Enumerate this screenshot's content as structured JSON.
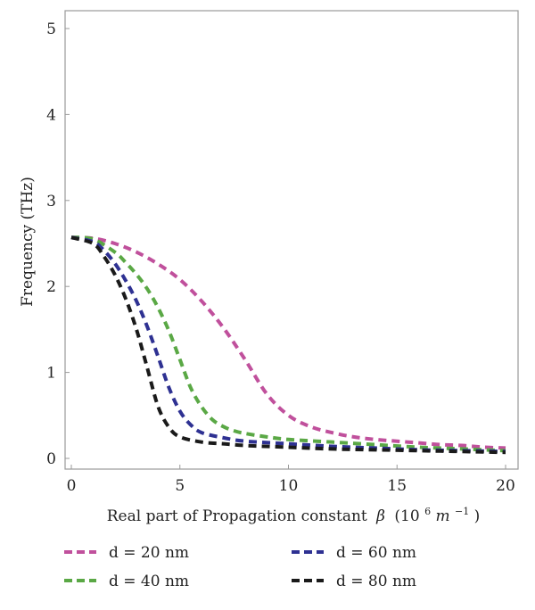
{
  "chart_data": {
    "type": "line",
    "title": "",
    "xlabel": "Real part of Propagation constant",
    "xlabel_symbol": "β",
    "xlabel_units": "(10",
    "xlabel_units_exp": "6",
    "xlabel_units_m": " m",
    "xlabel_units_mexp": "−1",
    "xlabel_units_close": ")",
    "ylabel": "Frequency (THz)",
    "xlim": [
      0,
      20
    ],
    "ylim": [
      0,
      5
    ],
    "xticks": [
      "0",
      "5",
      "10",
      "15",
      "20"
    ],
    "yticks": [
      "0",
      "1",
      "2",
      "3",
      "4",
      "5"
    ],
    "grid": false,
    "legend_position": "below",
    "line_style": "dashed",
    "series": [
      {
        "name": "d = 20 nm",
        "color": "#c0509c",
        "x": [
          0,
          1,
          2,
          3,
          4,
          5,
          6,
          7,
          8,
          9,
          10,
          11,
          12,
          13,
          14,
          15,
          16,
          17,
          18,
          19,
          20
        ],
        "y": [
          2.57,
          2.56,
          2.5,
          2.4,
          2.26,
          2.08,
          1.83,
          1.52,
          1.15,
          0.75,
          0.5,
          0.37,
          0.3,
          0.25,
          0.22,
          0.2,
          0.18,
          0.16,
          0.15,
          0.13,
          0.12
        ]
      },
      {
        "name": "d = 40 nm",
        "color": "#5aa845",
        "x": [
          0,
          1,
          2,
          2.5,
          3,
          3.5,
          4,
          4.5,
          5,
          5.5,
          6,
          6.5,
          7,
          7.5,
          8,
          9,
          10,
          12,
          14,
          16,
          18,
          20
        ],
        "y": [
          2.57,
          2.55,
          2.4,
          2.28,
          2.14,
          1.97,
          1.75,
          1.48,
          1.15,
          0.82,
          0.6,
          0.45,
          0.37,
          0.32,
          0.29,
          0.25,
          0.22,
          0.19,
          0.16,
          0.13,
          0.11,
          0.09
        ]
      },
      {
        "name": "d = 60 nm",
        "color": "#2e3192",
        "x": [
          0,
          1,
          1.5,
          2,
          2.5,
          3,
          3.5,
          4,
          4.5,
          5,
          5.5,
          6,
          7,
          8,
          10,
          12,
          14,
          16,
          18,
          20
        ],
        "y": [
          2.57,
          2.52,
          2.42,
          2.27,
          2.07,
          1.83,
          1.53,
          1.18,
          0.82,
          0.55,
          0.39,
          0.3,
          0.24,
          0.2,
          0.17,
          0.14,
          0.12,
          0.1,
          0.09,
          0.08
        ]
      },
      {
        "name": "d = 80 nm",
        "color": "#1a1a1a",
        "x": [
          0,
          1,
          1.5,
          2,
          2.5,
          3,
          3.5,
          4,
          4.5,
          5,
          6,
          7,
          8,
          10,
          12,
          14,
          16,
          18,
          20
        ],
        "y": [
          2.57,
          2.5,
          2.35,
          2.14,
          1.86,
          1.5,
          1.05,
          0.6,
          0.36,
          0.25,
          0.19,
          0.17,
          0.15,
          0.13,
          0.11,
          0.1,
          0.09,
          0.08,
          0.07
        ]
      }
    ]
  }
}
